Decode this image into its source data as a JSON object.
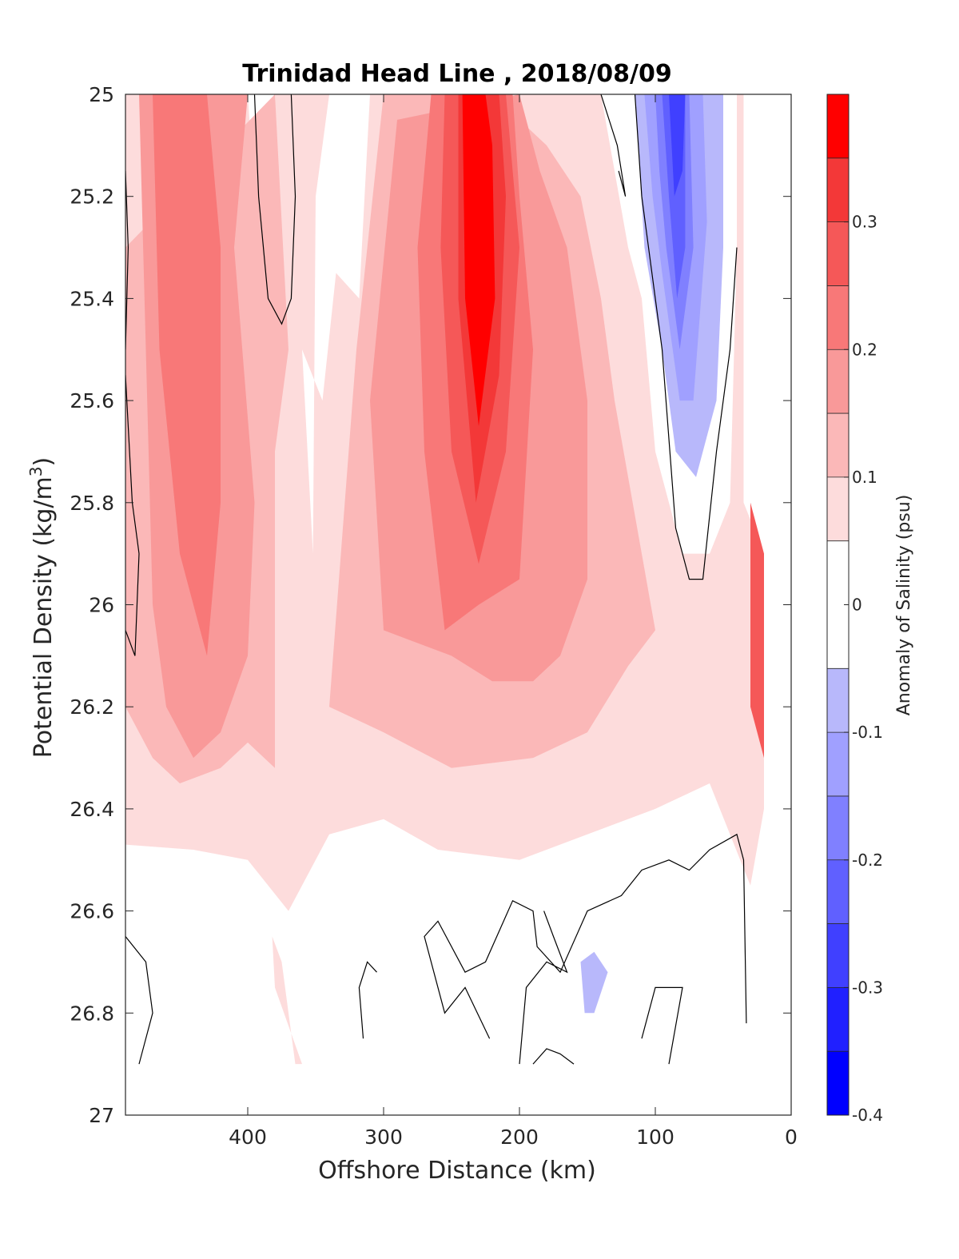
{
  "chart_data": {
    "type": "heatmap",
    "title": "Trinidad Head Line , 2018/08/09",
    "xlabel": "Offshore Distance (km)",
    "ylabel": "Potential Density (kg/m",
    "ylabel_sup": "3",
    "ylabel_close": ")",
    "xlim": [
      490,
      0
    ],
    "ylim": [
      25,
      27
    ],
    "x_reversed": true,
    "y_reversed": true,
    "x_ticks": [
      400,
      300,
      200,
      100,
      0
    ],
    "y_ticks": [
      25,
      25.2,
      25.4,
      25.6,
      25.8,
      26,
      26.2,
      26.4,
      26.6,
      26.8,
      27
    ],
    "x_tick_labels": [
      "400",
      "300",
      "200",
      "100",
      "0"
    ],
    "y_tick_labels": [
      "25",
      "25.2",
      "25.4",
      "25.6",
      "25.8",
      "26",
      "26.2",
      "26.4",
      "26.6",
      "26.8",
      "27"
    ],
    "colorbar": {
      "label": "Anomaly of Salinity (psu)",
      "range": [
        -0.4,
        0.4
      ],
      "ticks": [
        -0.4,
        -0.3,
        -0.2,
        -0.1,
        0,
        0.1,
        0.2,
        0.3
      ],
      "tick_labels": [
        "-0.4",
        "-0.3",
        "-0.2",
        "-0.1",
        "0",
        "0.1",
        "0.2",
        "0.3"
      ],
      "levels": [
        {
          "min": -0.4,
          "max": -0.35,
          "color": "#0000ff"
        },
        {
          "min": -0.35,
          "max": -0.3,
          "color": "#2020ff"
        },
        {
          "min": -0.3,
          "max": -0.25,
          "color": "#4040ff"
        },
        {
          "min": -0.25,
          "max": -0.2,
          "color": "#6060ff"
        },
        {
          "min": -0.2,
          "max": -0.15,
          "color": "#8080ff"
        },
        {
          "min": -0.15,
          "max": -0.1,
          "color": "#a0a0ff"
        },
        {
          "min": -0.1,
          "max": -0.05,
          "color": "#b8b8fb"
        },
        {
          "min": -0.05,
          "max": 0.05,
          "color": "#ffffff"
        },
        {
          "min": 0.05,
          "max": 0.1,
          "color": "#fddcdc"
        },
        {
          "min": 0.1,
          "max": 0.15,
          "color": "#fbb8b8"
        },
        {
          "min": 0.15,
          "max": 0.2,
          "color": "#f99999"
        },
        {
          "min": 0.2,
          "max": 0.25,
          "color": "#f87878"
        },
        {
          "min": 0.25,
          "max": 0.3,
          "color": "#f55858"
        },
        {
          "min": 0.3,
          "max": 0.35,
          "color": "#f33838"
        },
        {
          "min": 0.35,
          "max": 0.4,
          "color": "#ff0000"
        }
      ]
    },
    "regions": [
      {
        "name": "pos-0.05",
        "value": 0.07,
        "points": [
          [
            490,
            25
          ],
          [
            35,
            25
          ],
          [
            35,
            25.8
          ],
          [
            20,
            25.9
          ],
          [
            20,
            26.4
          ],
          [
            30,
            26.55
          ],
          [
            60,
            26.35
          ],
          [
            100,
            26.4
          ],
          [
            150,
            26.45
          ],
          [
            200,
            26.5
          ],
          [
            260,
            26.48
          ],
          [
            300,
            26.42
          ],
          [
            340,
            26.45
          ],
          [
            370,
            26.6
          ],
          [
            400,
            26.5
          ],
          [
            440,
            26.48
          ],
          [
            490,
            26.47
          ]
        ]
      },
      {
        "name": "cold-core-1",
        "value": 0.0,
        "points": [
          [
            400,
            25
          ],
          [
            380,
            25
          ],
          [
            375,
            25.4
          ],
          [
            385,
            25.45
          ],
          [
            395,
            25.2
          ]
        ]
      },
      {
        "name": "cold-core-2",
        "value": 0.0,
        "points": [
          [
            340,
            25
          ],
          [
            310,
            25
          ],
          [
            318,
            25.4
          ],
          [
            335,
            25.35
          ],
          [
            345,
            25.6
          ],
          [
            360,
            25.5
          ],
          [
            352,
            25.9
          ],
          [
            350,
            25.2
          ]
        ]
      },
      {
        "name": "cold-coast",
        "value": 0.0,
        "points": [
          [
            140,
            25
          ],
          [
            40,
            25
          ],
          [
            40,
            25.3
          ],
          [
            45,
            25.8
          ],
          [
            60,
            25.9
          ],
          [
            80,
            25.9
          ],
          [
            100,
            25.7
          ],
          [
            110,
            25.4
          ],
          [
            120,
            25.3
          ]
        ]
      },
      {
        "name": "pos-0.10-left",
        "value": 0.12,
        "points": [
          [
            490,
            25.3
          ],
          [
            490,
            26.2
          ],
          [
            470,
            26.3
          ],
          [
            450,
            26.35
          ],
          [
            420,
            26.32
          ],
          [
            400,
            26.27
          ],
          [
            380,
            26.32
          ],
          [
            380,
            25.7
          ],
          [
            370,
            25.5
          ],
          [
            380,
            25
          ]
        ]
      },
      {
        "name": "pos-0.10-mid",
        "value": 0.12,
        "points": [
          [
            320,
            25.5
          ],
          [
            340,
            26.2
          ],
          [
            300,
            26.25
          ],
          [
            250,
            26.32
          ],
          [
            190,
            26.3
          ],
          [
            150,
            26.25
          ],
          [
            120,
            26.12
          ],
          [
            100,
            26.05
          ],
          [
            130,
            25.6
          ],
          [
            140,
            25.4
          ],
          [
            155,
            25.2
          ],
          [
            180,
            25.1
          ],
          [
            220,
            25
          ],
          [
            300,
            25
          ]
        ]
      },
      {
        "name": "pos-0.15-left",
        "value": 0.17,
        "points": [
          [
            480,
            25
          ],
          [
            470,
            26
          ],
          [
            460,
            26.2
          ],
          [
            440,
            26.3
          ],
          [
            420,
            26.25
          ],
          [
            400,
            26.1
          ],
          [
            395,
            25.8
          ],
          [
            410,
            25.3
          ],
          [
            400,
            25
          ]
        ]
      },
      {
        "name": "pos-0.15-mid",
        "value": 0.17,
        "points": [
          [
            290,
            25.05
          ],
          [
            310,
            25.6
          ],
          [
            300,
            26.05
          ],
          [
            250,
            26.1
          ],
          [
            220,
            26.15
          ],
          [
            190,
            26.15
          ],
          [
            170,
            26.1
          ],
          [
            150,
            25.95
          ],
          [
            150,
            25.6
          ],
          [
            165,
            25.3
          ],
          [
            185,
            25.15
          ],
          [
            200,
            25
          ]
        ]
      },
      {
        "name": "pos-0.2-left",
        "value": 0.22,
        "points": [
          [
            470,
            25
          ],
          [
            465,
            25.5
          ],
          [
            450,
            25.9
          ],
          [
            430,
            26.1
          ],
          [
            420,
            25.8
          ],
          [
            420,
            25.3
          ],
          [
            430,
            25
          ]
        ]
      },
      {
        "name": "pos-0.2-mid",
        "value": 0.22,
        "points": [
          [
            265,
            25
          ],
          [
            275,
            25.3
          ],
          [
            270,
            25.7
          ],
          [
            255,
            26.05
          ],
          [
            230,
            26.0
          ],
          [
            200,
            25.95
          ],
          [
            190,
            25.5
          ],
          [
            200,
            25.2
          ],
          [
            205,
            25
          ]
        ]
      },
      {
        "name": "pos-0.25-mid",
        "value": 0.27,
        "points": [
          [
            255,
            25
          ],
          [
            258,
            25.3
          ],
          [
            250,
            25.7
          ],
          [
            230,
            25.92
          ],
          [
            210,
            25.7
          ],
          [
            200,
            25.3
          ],
          [
            210,
            25
          ]
        ]
      },
      {
        "name": "pos-0.3-mid",
        "value": 0.32,
        "points": [
          [
            245,
            25
          ],
          [
            245,
            25.4
          ],
          [
            232,
            25.8
          ],
          [
            215,
            25.55
          ],
          [
            210,
            25.2
          ],
          [
            215,
            25
          ]
        ]
      },
      {
        "name": "pos-0.35-mid",
        "value": 0.37,
        "points": [
          [
            242,
            25
          ],
          [
            240,
            25.4
          ],
          [
            230,
            25.65
          ],
          [
            218,
            25.4
          ],
          [
            220,
            25.1
          ],
          [
            225,
            25
          ]
        ]
      },
      {
        "name": "neg-0.05",
        "value": -0.07,
        "points": [
          [
            115,
            25
          ],
          [
            50,
            25
          ],
          [
            50,
            25.3
          ],
          [
            55,
            25.6
          ],
          [
            70,
            25.75
          ],
          [
            85,
            25.7
          ],
          [
            95,
            25.5
          ],
          [
            108,
            25.3
          ]
        ]
      },
      {
        "name": "neg-0.1",
        "value": -0.12,
        "points": [
          [
            108,
            25
          ],
          [
            65,
            25
          ],
          [
            62,
            25.25
          ],
          [
            72,
            25.6
          ],
          [
            82,
            25.6
          ],
          [
            95,
            25.35
          ],
          [
            102,
            25.2
          ]
        ]
      },
      {
        "name": "neg-0.15",
        "value": -0.17,
        "points": [
          [
            100,
            25
          ],
          [
            75,
            25
          ],
          [
            72,
            25.3
          ],
          [
            82,
            25.5
          ],
          [
            92,
            25.3
          ],
          [
            97,
            25.15
          ]
        ]
      },
      {
        "name": "neg-0.2",
        "value": -0.22,
        "points": [
          [
            95,
            25
          ],
          [
            78,
            25
          ],
          [
            78,
            25.3
          ],
          [
            84,
            25.4
          ],
          [
            90,
            25.2
          ]
        ]
      },
      {
        "name": "neg-0.25",
        "value": -0.27,
        "points": [
          [
            90,
            25
          ],
          [
            78,
            25
          ],
          [
            80,
            25.15
          ],
          [
            86,
            25.2
          ]
        ]
      },
      {
        "name": "coast-pos",
        "value": 0.27,
        "points": [
          [
            30,
            25.8
          ],
          [
            20,
            25.9
          ],
          [
            20,
            26.3
          ],
          [
            30,
            26.2
          ]
        ]
      },
      {
        "name": "deep-pos",
        "value": 0.07,
        "points": [
          [
            382,
            26.65
          ],
          [
            375,
            26.7
          ],
          [
            365,
            26.9
          ],
          [
            360,
            26.9
          ],
          [
            380,
            26.75
          ]
        ]
      },
      {
        "name": "deep-neg",
        "value": -0.07,
        "points": [
          [
            155,
            26.7
          ],
          [
            145,
            26.68
          ],
          [
            135,
            26.72
          ],
          [
            145,
            26.8
          ],
          [
            152,
            26.8
          ]
        ]
      }
    ],
    "contours": [
      [
        [
          490,
          25.15
        ],
        [
          488,
          25.3
        ],
        [
          490,
          25.5
        ]
      ],
      [
        [
          490,
          25.55
        ],
        [
          485,
          25.8
        ],
        [
          480,
          25.9
        ],
        [
          483,
          26.1
        ],
        [
          490,
          26.05
        ]
      ],
      [
        [
          395,
          25
        ],
        [
          392,
          25.2
        ],
        [
          385,
          25.4
        ],
        [
          375,
          25.45
        ],
        [
          368,
          25.4
        ],
        [
          365,
          25.2
        ],
        [
          368,
          25
        ]
      ],
      [
        [
          140,
          25
        ],
        [
          128,
          25.1
        ],
        [
          122,
          25.2
        ],
        [
          127,
          25.15
        ]
      ],
      [
        [
          115,
          25
        ],
        [
          110,
          25.2
        ],
        [
          105,
          25.3
        ],
        [
          95,
          25.5
        ],
        [
          85,
          25.85
        ],
        [
          75,
          25.95
        ],
        [
          65,
          25.95
        ],
        [
          55,
          25.7
        ],
        [
          45,
          25.5
        ],
        [
          40,
          25.3
        ]
      ],
      [
        [
          490,
          26.65
        ],
        [
          475,
          26.7
        ],
        [
          470,
          26.8
        ],
        [
          480,
          26.9
        ]
      ],
      [
        [
          315,
          26.85
        ],
        [
          318,
          26.75
        ],
        [
          312,
          26.7
        ],
        [
          305,
          26.72
        ]
      ],
      [
        [
          222,
          26.85
        ],
        [
          240,
          26.75
        ],
        [
          255,
          26.8
        ],
        [
          270,
          26.65
        ],
        [
          260,
          26.62
        ],
        [
          240,
          26.72
        ],
        [
          225,
          26.7
        ],
        [
          205,
          26.58
        ],
        [
          190,
          26.6
        ],
        [
          187,
          26.67
        ],
        [
          170,
          26.72
        ],
        [
          150,
          26.6
        ],
        [
          125,
          26.57
        ],
        [
          110,
          26.52
        ],
        [
          90,
          26.5
        ],
        [
          75,
          26.52
        ],
        [
          60,
          26.48
        ],
        [
          40,
          26.45
        ],
        [
          35,
          26.5
        ],
        [
          33,
          26.82
        ]
      ],
      [
        [
          90,
          26.9
        ],
        [
          80,
          26.75
        ],
        [
          100,
          26.75
        ],
        [
          110,
          26.85
        ]
      ],
      [
        [
          190,
          26.9
        ],
        [
          180,
          26.87
        ],
        [
          170,
          26.88
        ],
        [
          160,
          26.9
        ]
      ],
      [
        [
          200,
          26.9
        ],
        [
          195,
          26.75
        ],
        [
          180,
          26.7
        ],
        [
          165,
          26.72
        ],
        [
          175,
          26.65
        ],
        [
          182,
          26.6
        ]
      ]
    ]
  }
}
